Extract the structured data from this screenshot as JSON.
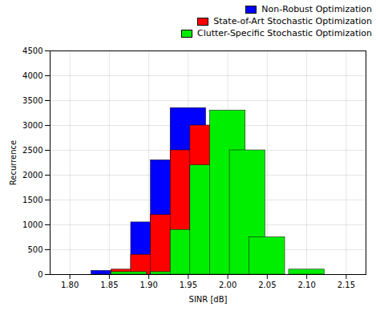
{
  "chart_data": {
    "type": "bar",
    "xlabel": "SINR [dB]",
    "ylabel": "Recurrence",
    "xlim": [
      1.775,
      2.175
    ],
    "ylim": [
      0,
      4500
    ],
    "xticks": [
      {
        "value": 1.8,
        "label": "1.80"
      },
      {
        "value": 1.85,
        "label": "1.85"
      },
      {
        "value": 1.9,
        "label": "1.90"
      },
      {
        "value": 1.95,
        "label": "1.95"
      },
      {
        "value": 2.0,
        "label": "2.00"
      },
      {
        "value": 2.05,
        "label": "2.05"
      },
      {
        "value": 2.1,
        "label": "2.10"
      },
      {
        "value": 2.15,
        "label": "2.15"
      }
    ],
    "yticks": [
      0,
      500,
      1000,
      1500,
      2000,
      2500,
      3000,
      3500,
      4000,
      4500
    ],
    "grid": true,
    "legend": "upper right",
    "series": [
      {
        "name": "Non-Robust Optimization",
        "color": "#0000FF",
        "x": [
          1.85,
          1.9,
          1.925,
          1.95,
          1.975
        ],
        "values": [
          75,
          1050,
          2300,
          3350,
          2300
        ]
      },
      {
        "name": "State-of-Art Stochastic Optimization",
        "color": "#FF0000",
        "x": [
          1.875,
          1.9,
          1.925,
          1.95,
          1.975,
          2.0,
          2.025
        ],
        "values": [
          100,
          400,
          1200,
          2500,
          3000,
          700,
          100
        ]
      },
      {
        "name": "Clutter-Specific Stochastic Optimization",
        "color": "#00EE00",
        "x": [
          1.875,
          1.925,
          1.95,
          1.975,
          2.0,
          2.025,
          2.05,
          2.1
        ],
        "values": [
          50,
          50,
          900,
          2200,
          3300,
          2500,
          750,
          100
        ]
      }
    ]
  }
}
